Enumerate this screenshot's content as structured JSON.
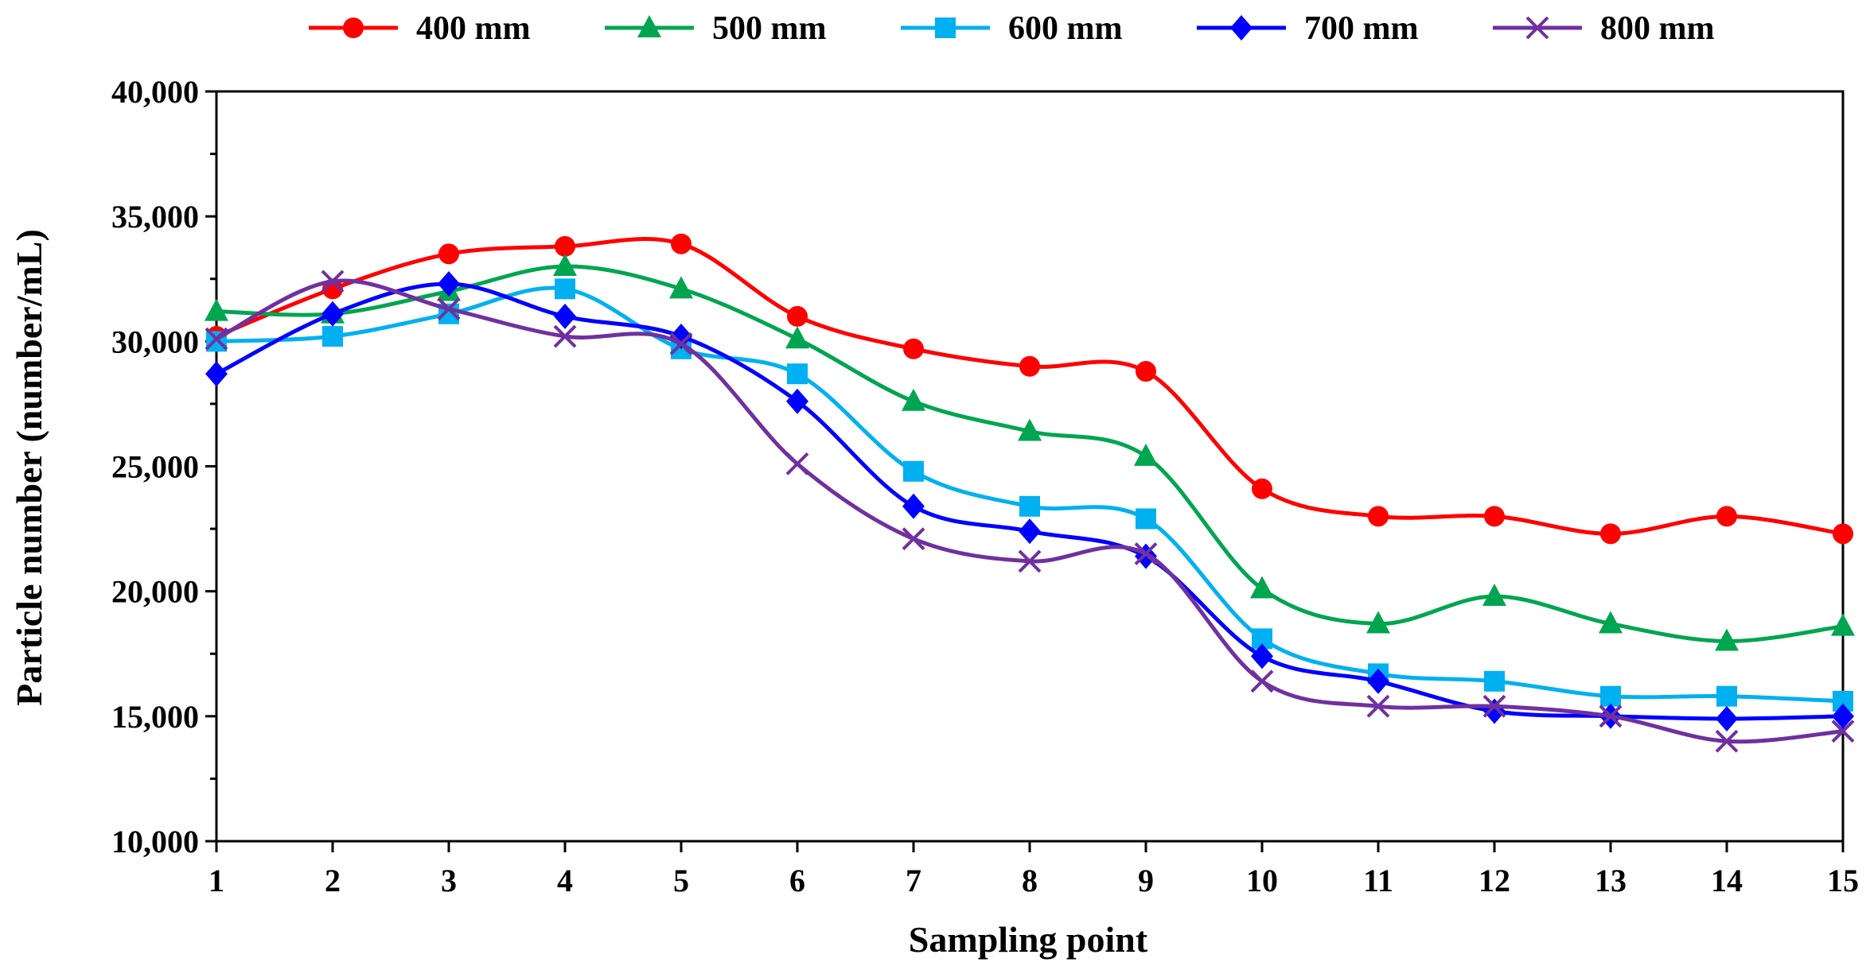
{
  "chart_data": {
    "type": "line",
    "title": "",
    "xlabel": "Sampling point",
    "ylabel": "Particle number (number/mL)",
    "ylim": [
      10000,
      40000
    ],
    "ytick_values": [
      10000,
      15000,
      20000,
      25000,
      30000,
      35000,
      40000
    ],
    "ytick_labels": [
      "10,000",
      "15,000",
      "20,000",
      "25,000",
      "30,000",
      "35,000",
      "40,000"
    ],
    "x": [
      1,
      2,
      3,
      4,
      5,
      6,
      7,
      8,
      9,
      10,
      11,
      12,
      13,
      14,
      15
    ],
    "xtick_labels": [
      "1",
      "2",
      "3",
      "4",
      "5",
      "6",
      "7",
      "8",
      "9",
      "10",
      "11",
      "12",
      "13",
      "14",
      "15"
    ],
    "grid": false,
    "legend_position": "top",
    "series": [
      {
        "name": "400 mm",
        "color": "#ff0000",
        "marker": "circle",
        "values": [
          30200,
          32100,
          33500,
          33800,
          33900,
          31000,
          29700,
          29000,
          28800,
          24100,
          23000,
          23000,
          22300,
          23000,
          22300
        ]
      },
      {
        "name": "500 mm",
        "color": "#00a550",
        "marker": "triangle",
        "values": [
          31200,
          31100,
          32000,
          33000,
          32100,
          30100,
          27600,
          26400,
          25400,
          20100,
          18700,
          19800,
          18700,
          18000,
          18600
        ]
      },
      {
        "name": "600 mm",
        "color": "#00b0f0",
        "marker": "square",
        "values": [
          30000,
          30200,
          31100,
          32100,
          29700,
          28700,
          24800,
          23400,
          22900,
          18100,
          16700,
          16400,
          15800,
          15800,
          15600
        ]
      },
      {
        "name": "700 mm",
        "color": "#0000ff",
        "marker": "diamond",
        "values": [
          28700,
          31100,
          32300,
          31000,
          30200,
          27600,
          23400,
          22400,
          21400,
          17400,
          16400,
          15200,
          15000,
          14900,
          15000
        ]
      },
      {
        "name": "800 mm",
        "color": "#7030a0",
        "marker": "x",
        "values": [
          30100,
          32400,
          31300,
          30200,
          29900,
          25100,
          22100,
          21200,
          21500,
          16400,
          15400,
          15400,
          15000,
          14000,
          14400
        ]
      }
    ]
  }
}
